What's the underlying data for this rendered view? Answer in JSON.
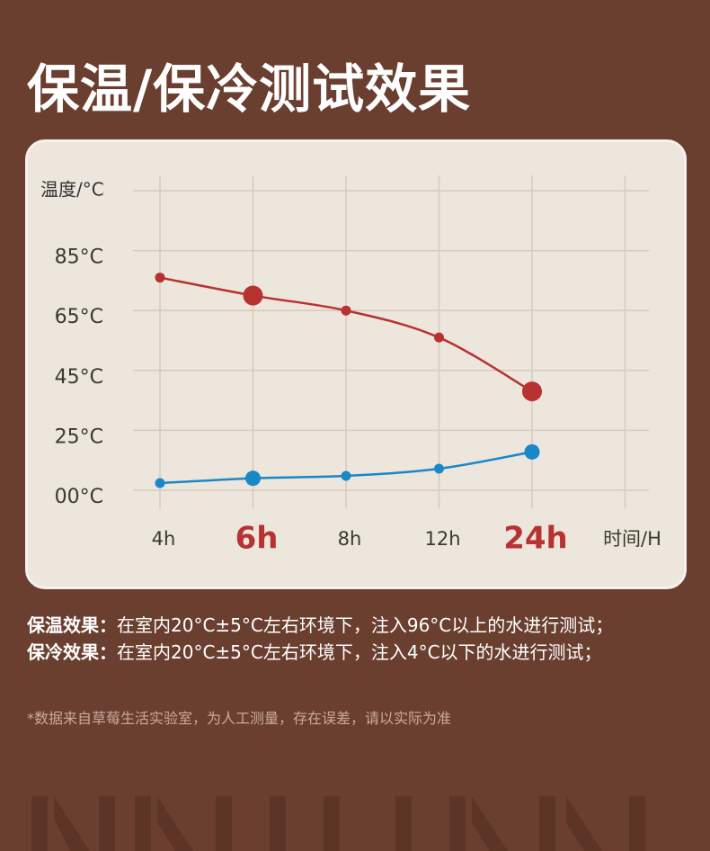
{
  "header": {
    "title": "保温/保冷测试效果"
  },
  "chart_data": {
    "type": "line",
    "y_label": "温度/°C",
    "x_label": "时间/H",
    "categories": [
      "4h",
      "6h",
      "8h",
      "12h",
      "24h"
    ],
    "highlight": [
      1,
      4
    ],
    "series": [
      {
        "color": "#b83232",
        "values": [
          76,
          70,
          65,
          56,
          38
        ]
      },
      {
        "color": "#1a87c8",
        "values": [
          3,
          5,
          6,
          9,
          16
        ]
      }
    ],
    "ylim": [
      0,
      85
    ],
    "yticks": [
      {
        "value": 0,
        "label": "00°C"
      },
      {
        "value": 25,
        "label": "25°C"
      },
      {
        "value": 45,
        "label": "45°C"
      },
      {
        "value": 65,
        "label": "65°C"
      },
      {
        "value": 85,
        "label": "85°C"
      }
    ],
    "grid": true
  },
  "notes": [
    {
      "label": "保温效果：",
      "text": "在室内20°C±5°C左右环境下，注入96°C以上的水进行测试；"
    },
    {
      "label": "保冷效果：",
      "text": "在室内20°C±5°C左右环境下，注入4°C以下的水进行测试；"
    }
  ],
  "footnote": "*数据来自草莓生活实验室，为人工测量，存在误差，请以实际为准"
}
